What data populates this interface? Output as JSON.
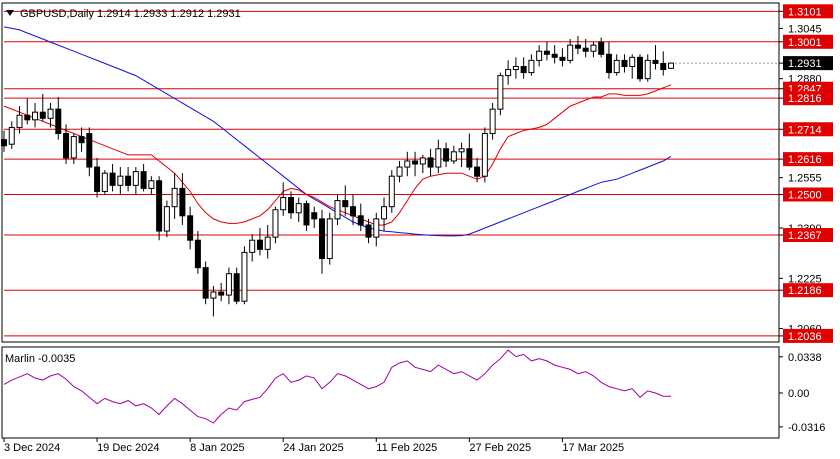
{
  "header": {
    "symbol_line": "GBPUSD,Daily  1.2914 1.2933 1.2912 1.2931"
  },
  "indicator": {
    "label": "Marlin -0.0035"
  },
  "colors": {
    "candle": "#000000",
    "level_line": "#e00000",
    "ma_fast": "#e00000",
    "ma_slow": "#1010e0",
    "marlin": "#a000a0",
    "axis": "#000000",
    "current_price_bg": "#000000"
  },
  "chart_data": [
    {
      "type": "candlestick",
      "y_axis_ticks": [
        "1.3101",
        "1.3045",
        "1.3001",
        "1.2931",
        "1.2880",
        "1.2847",
        "1.2816",
        "1.2714",
        "1.2616",
        "1.2555",
        "1.2500",
        "1.2390",
        "1.2367",
        "1.2225",
        "1.2186",
        "1.2060",
        "1.2036"
      ],
      "ylim": [
        1.2016,
        1.3125
      ],
      "x_tick_labels": [
        "3 Dec 2024",
        "19 Dec 2024",
        "8 Jan 2025",
        "24 Jan 2025",
        "11 Feb 2025",
        "27 Feb 2025",
        "17 Mar 2025"
      ],
      "x_tick_bars": [
        0,
        12,
        24,
        36,
        48,
        60,
        72
      ],
      "current_price": "1.2931",
      "horizontal_levels": [
        1.3101,
        1.3001,
        1.2847,
        1.2816,
        1.2714,
        1.2616,
        1.25,
        1.2367,
        1.2186,
        1.2036
      ],
      "level_labels": [
        "1.3101",
        "1.3001",
        "1.2847",
        "1.2816",
        "1.2714",
        "1.2616",
        "1.2500",
        "1.2367",
        "1.2186",
        "1.2036"
      ],
      "ohlc": [
        [
          1.268,
          1.271,
          1.264,
          1.266
        ],
        [
          1.2665,
          1.274,
          1.265,
          1.272
        ],
        [
          1.272,
          1.279,
          1.27,
          1.276
        ],
        [
          1.276,
          1.2815,
          1.273,
          1.2745
        ],
        [
          1.2745,
          1.28,
          1.272,
          1.277
        ],
        [
          1.277,
          1.283,
          1.274,
          1.275
        ],
        [
          1.275,
          1.28,
          1.272,
          1.278
        ],
        [
          1.278,
          1.282,
          1.268,
          1.27
        ],
        [
          1.27,
          1.273,
          1.26,
          1.262
        ],
        [
          1.262,
          1.27,
          1.26,
          1.269
        ],
        [
          1.269,
          1.272,
          1.264,
          1.267
        ],
        [
          1.27,
          1.272,
          1.256,
          1.259
        ],
        [
          1.259,
          1.262,
          1.249,
          1.251
        ],
        [
          1.251,
          1.258,
          1.25,
          1.257
        ],
        [
          1.257,
          1.26,
          1.251,
          1.253
        ],
        [
          1.253,
          1.259,
          1.25,
          1.256
        ],
        [
          1.256,
          1.259,
          1.251,
          1.253
        ],
        [
          1.253,
          1.259,
          1.25,
          1.2575
        ],
        [
          1.2575,
          1.26,
          1.251,
          1.252
        ],
        [
          1.252,
          1.256,
          1.25,
          1.2545
        ],
        [
          1.2545,
          1.256,
          1.235,
          1.238
        ],
        [
          1.238,
          1.248,
          1.236,
          1.246
        ],
        [
          1.246,
          1.257,
          1.242,
          1.252
        ],
        [
          1.252,
          1.257,
          1.24,
          1.243
        ],
        [
          1.243,
          1.246,
          1.232,
          1.235
        ],
        [
          1.235,
          1.238,
          1.224,
          1.226
        ],
        [
          1.226,
          1.228,
          1.214,
          1.216
        ],
        [
          1.216,
          1.22,
          1.21,
          1.218
        ],
        [
          1.218,
          1.221,
          1.215,
          1.217
        ],
        [
          1.217,
          1.226,
          1.214,
          1.224
        ],
        [
          1.224,
          1.226,
          1.214,
          1.215
        ],
        [
          1.215,
          1.233,
          1.214,
          1.231
        ],
        [
          1.231,
          1.237,
          1.228,
          1.235
        ],
        [
          1.235,
          1.239,
          1.23,
          1.232
        ],
        [
          1.232,
          1.24,
          1.229,
          1.236
        ],
        [
          1.236,
          1.246,
          1.234,
          1.245
        ],
        [
          1.245,
          1.254,
          1.243,
          1.249
        ],
        [
          1.249,
          1.251,
          1.242,
          1.244
        ],
        [
          1.244,
          1.249,
          1.241,
          1.247
        ],
        [
          1.247,
          1.248,
          1.238,
          1.24
        ],
        [
          1.244,
          1.246,
          1.239,
          1.242
        ],
        [
          1.242,
          1.245,
          1.224,
          1.229
        ],
        [
          1.229,
          1.244,
          1.227,
          1.242
        ],
        [
          1.242,
          1.25,
          1.24,
          1.248
        ],
        [
          1.248,
          1.253,
          1.243,
          1.246
        ],
        [
          1.246,
          1.25,
          1.24,
          1.243
        ],
        [
          1.243,
          1.247,
          1.238,
          1.24
        ],
        [
          1.24,
          1.242,
          1.234,
          1.236
        ],
        [
          1.236,
          1.244,
          1.233,
          1.242
        ],
        [
          1.242,
          1.249,
          1.238,
          1.246
        ],
        [
          1.246,
          1.258,
          1.244,
          1.256
        ],
        [
          1.256,
          1.261,
          1.254,
          1.259
        ],
        [
          1.259,
          1.264,
          1.256,
          1.261
        ],
        [
          1.261,
          1.264,
          1.256,
          1.26
        ],
        [
          1.26,
          1.263,
          1.257,
          1.262
        ],
        [
          1.262,
          1.265,
          1.256,
          1.259
        ],
        [
          1.259,
          1.268,
          1.257,
          1.265
        ],
        [
          1.265,
          1.267,
          1.259,
          1.261
        ],
        [
          1.261,
          1.266,
          1.26,
          1.264
        ],
        [
          1.264,
          1.267,
          1.259,
          1.265
        ],
        [
          1.265,
          1.27,
          1.258,
          1.259
        ],
        [
          1.259,
          1.262,
          1.254,
          1.256
        ],
        [
          1.256,
          1.272,
          1.254,
          1.27
        ],
        [
          1.27,
          1.28,
          1.268,
          1.278
        ],
        [
          1.278,
          1.29,
          1.276,
          1.289
        ],
        [
          1.289,
          1.294,
          1.286,
          1.291
        ],
        [
          1.291,
          1.295,
          1.288,
          1.292
        ],
        [
          1.292,
          1.295,
          1.288,
          1.29
        ],
        [
          1.29,
          1.296,
          1.289,
          1.294
        ],
        [
          1.294,
          1.299,
          1.292,
          1.297
        ],
        [
          1.297,
          1.3,
          1.294,
          1.296
        ],
        [
          1.296,
          1.299,
          1.293,
          1.295
        ],
        [
          1.295,
          1.298,
          1.292,
          1.294
        ],
        [
          1.294,
          1.301,
          1.293,
          1.299
        ],
        [
          1.299,
          1.302,
          1.296,
          1.298
        ],
        [
          1.298,
          1.301,
          1.295,
          1.297
        ],
        [
          1.297,
          1.3,
          1.295,
          1.299
        ],
        [
          1.3,
          1.3015,
          1.295,
          1.296
        ],
        [
          1.296,
          1.3,
          1.288,
          1.29
        ],
        [
          1.29,
          1.296,
          1.289,
          1.294
        ],
        [
          1.294,
          1.296,
          1.29,
          1.292
        ],
        [
          1.292,
          1.296,
          1.288,
          1.295
        ],
        [
          1.295,
          1.296,
          1.287,
          1.288
        ],
        [
          1.288,
          1.296,
          1.287,
          1.294
        ],
        [
          1.294,
          1.299,
          1.291,
          1.293
        ],
        [
          1.293,
          1.297,
          1.289,
          1.291
        ],
        [
          1.2914,
          1.2933,
          1.2912,
          1.2931
        ]
      ],
      "ma_fast": [
        1.279,
        1.278,
        1.277,
        1.276,
        1.275,
        1.274,
        1.273,
        1.272,
        1.271,
        1.27,
        1.269,
        1.268,
        1.267,
        1.266,
        1.265,
        1.264,
        1.263,
        1.263,
        1.263,
        1.263,
        1.261,
        1.259,
        1.257,
        1.254,
        1.251,
        1.247,
        1.244,
        1.242,
        1.241,
        1.2405,
        1.2405,
        1.241,
        1.242,
        1.243,
        1.245,
        1.248,
        1.251,
        1.252,
        1.2515,
        1.25,
        1.249,
        1.2475,
        1.246,
        1.245,
        1.244,
        1.243,
        1.242,
        1.241,
        1.24,
        1.24,
        1.241,
        1.244,
        1.248,
        1.252,
        1.255,
        1.256,
        1.2565,
        1.257,
        1.257,
        1.257,
        1.256,
        1.255,
        1.256,
        1.26,
        1.265,
        1.269,
        1.27,
        1.271,
        1.2715,
        1.272,
        1.273,
        1.275,
        1.277,
        1.279,
        1.28,
        1.281,
        1.282,
        1.282,
        1.283,
        1.283,
        1.2825,
        1.2825,
        1.2825,
        1.283,
        1.284,
        1.285,
        1.286
      ],
      "ma_slow": [
        1.305,
        1.3045,
        1.304,
        1.303,
        1.302,
        1.301,
        1.3,
        1.299,
        1.298,
        1.297,
        1.296,
        1.295,
        1.294,
        1.293,
        1.292,
        1.291,
        1.29,
        1.289,
        1.2875,
        1.286,
        1.2845,
        1.283,
        1.2815,
        1.28,
        1.2785,
        1.277,
        1.2755,
        1.274,
        1.272,
        1.27,
        1.268,
        1.266,
        1.264,
        1.262,
        1.26,
        1.258,
        1.256,
        1.254,
        1.252,
        1.25,
        1.2485,
        1.247,
        1.2455,
        1.244,
        1.2425,
        1.241,
        1.24,
        1.239,
        1.2385,
        1.238,
        1.2378,
        1.2375,
        1.2373,
        1.237,
        1.2368,
        1.2366,
        1.2365,
        1.2364,
        1.2364,
        1.2365,
        1.237,
        1.238,
        1.239,
        1.24,
        1.241,
        1.242,
        1.243,
        1.244,
        1.245,
        1.246,
        1.247,
        1.248,
        1.249,
        1.25,
        1.251,
        1.252,
        1.253,
        1.254,
        1.2545,
        1.255,
        1.256,
        1.257,
        1.258,
        1.259,
        1.26,
        1.261,
        1.2625
      ]
    },
    {
      "type": "line",
      "name": "Marlin",
      "y_axis_ticks": [
        "0.0338",
        "0.00",
        "-0.0316"
      ],
      "ylim": [
        -0.042,
        0.042
      ],
      "values": [
        0.008,
        0.012,
        0.015,
        0.018,
        0.014,
        0.012,
        0.016,
        0.018,
        0.013,
        0.006,
        0.002,
        -0.004,
        -0.01,
        -0.005,
        -0.008,
        -0.01,
        -0.007,
        -0.012,
        -0.01,
        -0.014,
        -0.02,
        -0.012,
        -0.005,
        -0.01,
        -0.016,
        -0.022,
        -0.024,
        -0.028,
        -0.02,
        -0.014,
        -0.016,
        -0.008,
        -0.006,
        -0.004,
        0.004,
        0.014,
        0.018,
        0.01,
        0.012,
        0.016,
        0.014,
        0.004,
        0.01,
        0.018,
        0.016,
        0.012,
        0.008,
        0.004,
        0.006,
        0.01,
        0.024,
        0.028,
        0.03,
        0.024,
        0.022,
        0.02,
        0.026,
        0.022,
        0.018,
        0.02,
        0.016,
        0.012,
        0.018,
        0.026,
        0.032,
        0.04,
        0.034,
        0.036,
        0.03,
        0.032,
        0.03,
        0.026,
        0.024,
        0.022,
        0.018,
        0.02,
        0.016,
        0.01,
        0.006,
        0.004,
        0.002,
        0.004,
        -0.004,
        0.002,
        0.0,
        -0.003,
        -0.003
      ]
    }
  ]
}
